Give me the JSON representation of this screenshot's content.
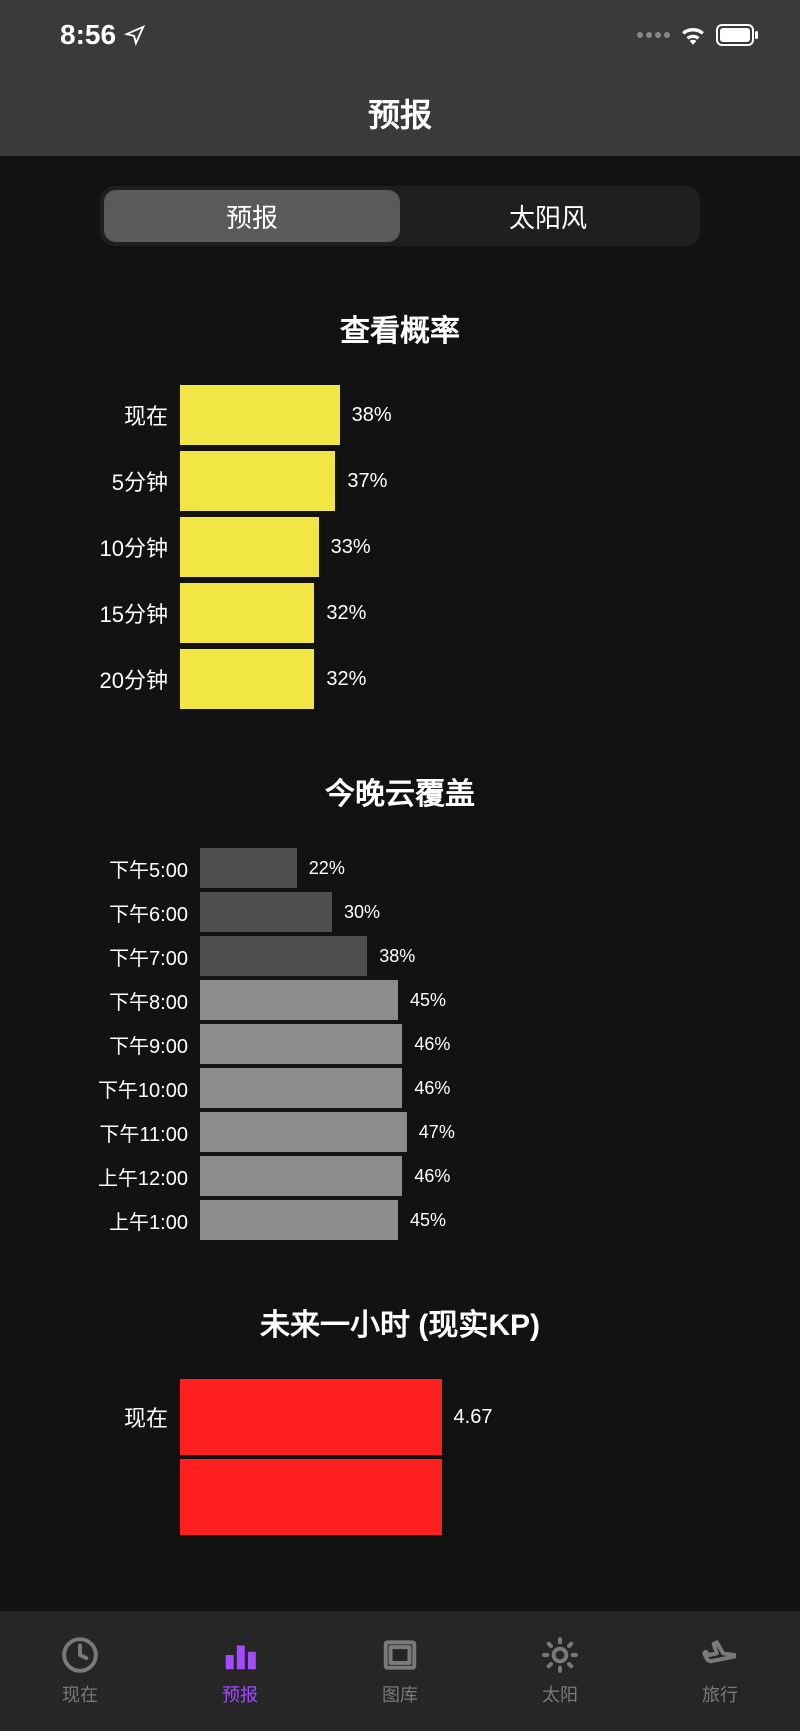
{
  "status": {
    "time": "8:56"
  },
  "header": {
    "title": "预报"
  },
  "segment": {
    "items": [
      "预报",
      "太阳风"
    ],
    "active_index": 0
  },
  "colors": {
    "probability_bar": "#f2e645",
    "cloud_bar_light": "#8c8c8c",
    "cloud_bar_dark": "#4f4f4f",
    "kp_bar": "#ff1f1f",
    "background": "#121212",
    "header_bg": "#3a3a3a",
    "tab_inactive": "#7a7a7a",
    "tab_active": "#a24bff"
  },
  "probability": {
    "title": "查看概率",
    "max": 100,
    "bar_scale": 4.2,
    "rows": [
      {
        "label": "现在",
        "value": 38,
        "text": "38%"
      },
      {
        "label": "5分钟",
        "value": 37,
        "text": "37%"
      },
      {
        "label": "10分钟",
        "value": 33,
        "text": "33%"
      },
      {
        "label": "15分钟",
        "value": 32,
        "text": "32%"
      },
      {
        "label": "20分钟",
        "value": 32,
        "text": "32%"
      }
    ]
  },
  "cloud": {
    "title": "今晚云覆盖",
    "max": 100,
    "bar_scale": 4.4,
    "rows": [
      {
        "label": "下午5:00",
        "value": 22,
        "text": "22%",
        "shade": "dark"
      },
      {
        "label": "下午6:00",
        "value": 30,
        "text": "30%",
        "shade": "dark"
      },
      {
        "label": "下午7:00",
        "value": 38,
        "text": "38%",
        "shade": "dark"
      },
      {
        "label": "下午8:00",
        "value": 45,
        "text": "45%",
        "shade": "light"
      },
      {
        "label": "下午9:00",
        "value": 46,
        "text": "46%",
        "shade": "light"
      },
      {
        "label": "下午10:00",
        "value": 46,
        "text": "46%",
        "shade": "light"
      },
      {
        "label": "下午11:00",
        "value": 47,
        "text": "47%",
        "shade": "light"
      },
      {
        "label": "上午12:00",
        "value": 46,
        "text": "46%",
        "shade": "light"
      },
      {
        "label": "上午1:00",
        "value": 45,
        "text": "45%",
        "shade": "light"
      }
    ]
  },
  "kp": {
    "title": "未来一小时 (现实KP)",
    "max": 9,
    "bar_scale": 56,
    "rows": [
      {
        "label": "现在",
        "value": 4.67,
        "text": "4.67"
      },
      {
        "label": "",
        "value": 4.67,
        "text": ""
      }
    ]
  },
  "tabs": {
    "items": [
      {
        "label": "现在",
        "icon": "clock"
      },
      {
        "label": "预报",
        "icon": "bars"
      },
      {
        "label": "图库",
        "icon": "frame"
      },
      {
        "label": "太阳",
        "icon": "sun"
      },
      {
        "label": "旅行",
        "icon": "plane"
      }
    ],
    "active_index": 1
  }
}
